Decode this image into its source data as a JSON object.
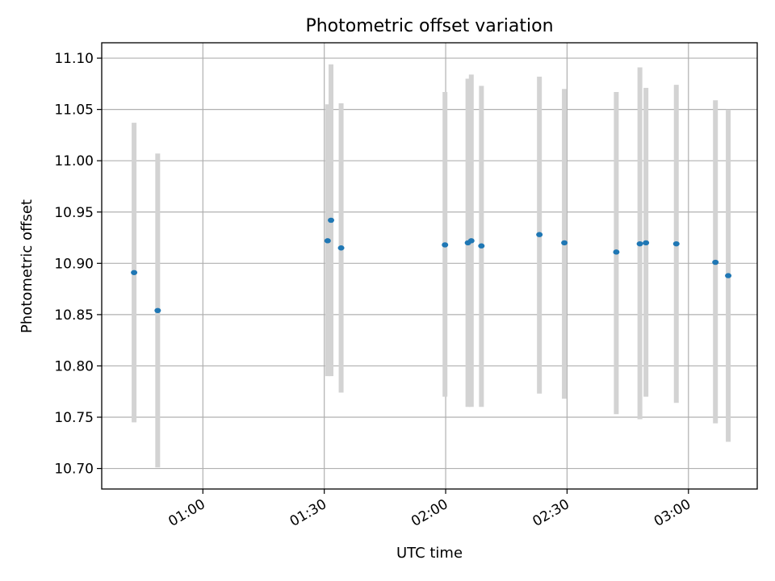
{
  "chart_data": {
    "type": "scatter",
    "title": "Photometric offset variation",
    "xlabel": "UTC time",
    "ylabel": "Photometric offset",
    "x_axis_kind": "time",
    "xlim": [
      "00:35",
      "03:17"
    ],
    "ylim": [
      10.68,
      11.115
    ],
    "grid": true,
    "x_ticks": [
      "01:00",
      "01:30",
      "02:00",
      "02:30",
      "03:00"
    ],
    "y_ticks": [
      "10.70",
      "10.75",
      "10.80",
      "10.85",
      "10.90",
      "10.95",
      "11.00",
      "11.05",
      "11.10"
    ],
    "colors": {
      "point": "#1f77b4",
      "error_bar": "#d3d3d3",
      "grid": "#b0b0b0"
    },
    "points": [
      {
        "time": "00:43:00",
        "value": 10.891,
        "low": 10.745,
        "high": 11.037
      },
      {
        "time": "00:48:50",
        "value": 10.854,
        "low": 10.701,
        "high": 11.007
      },
      {
        "time": "01:30:50",
        "value": 10.922,
        "low": 10.79,
        "high": 11.055
      },
      {
        "time": "01:31:40",
        "value": 10.942,
        "low": 10.79,
        "high": 11.094
      },
      {
        "time": "01:34:10",
        "value": 10.915,
        "low": 10.774,
        "high": 11.056
      },
      {
        "time": "01:59:50",
        "value": 10.918,
        "low": 10.77,
        "high": 11.067
      },
      {
        "time": "02:05:30",
        "value": 10.92,
        "low": 10.76,
        "high": 11.08
      },
      {
        "time": "02:06:20",
        "value": 10.922,
        "low": 10.76,
        "high": 11.084
      },
      {
        "time": "02:08:50",
        "value": 10.917,
        "low": 10.76,
        "high": 11.073
      },
      {
        "time": "02:23:10",
        "value": 10.928,
        "low": 10.773,
        "high": 11.082
      },
      {
        "time": "02:29:20",
        "value": 10.92,
        "low": 10.768,
        "high": 11.07
      },
      {
        "time": "02:42:10",
        "value": 10.911,
        "low": 10.753,
        "high": 11.067
      },
      {
        "time": "02:48:00",
        "value": 10.919,
        "low": 10.748,
        "high": 11.091
      },
      {
        "time": "02:49:30",
        "value": 10.92,
        "low": 10.77,
        "high": 11.071
      },
      {
        "time": "02:57:00",
        "value": 10.919,
        "low": 10.764,
        "high": 11.074
      },
      {
        "time": "03:06:40",
        "value": 10.901,
        "low": 10.744,
        "high": 11.059
      },
      {
        "time": "03:09:50",
        "value": 10.888,
        "low": 10.726,
        "high": 11.05
      }
    ]
  }
}
